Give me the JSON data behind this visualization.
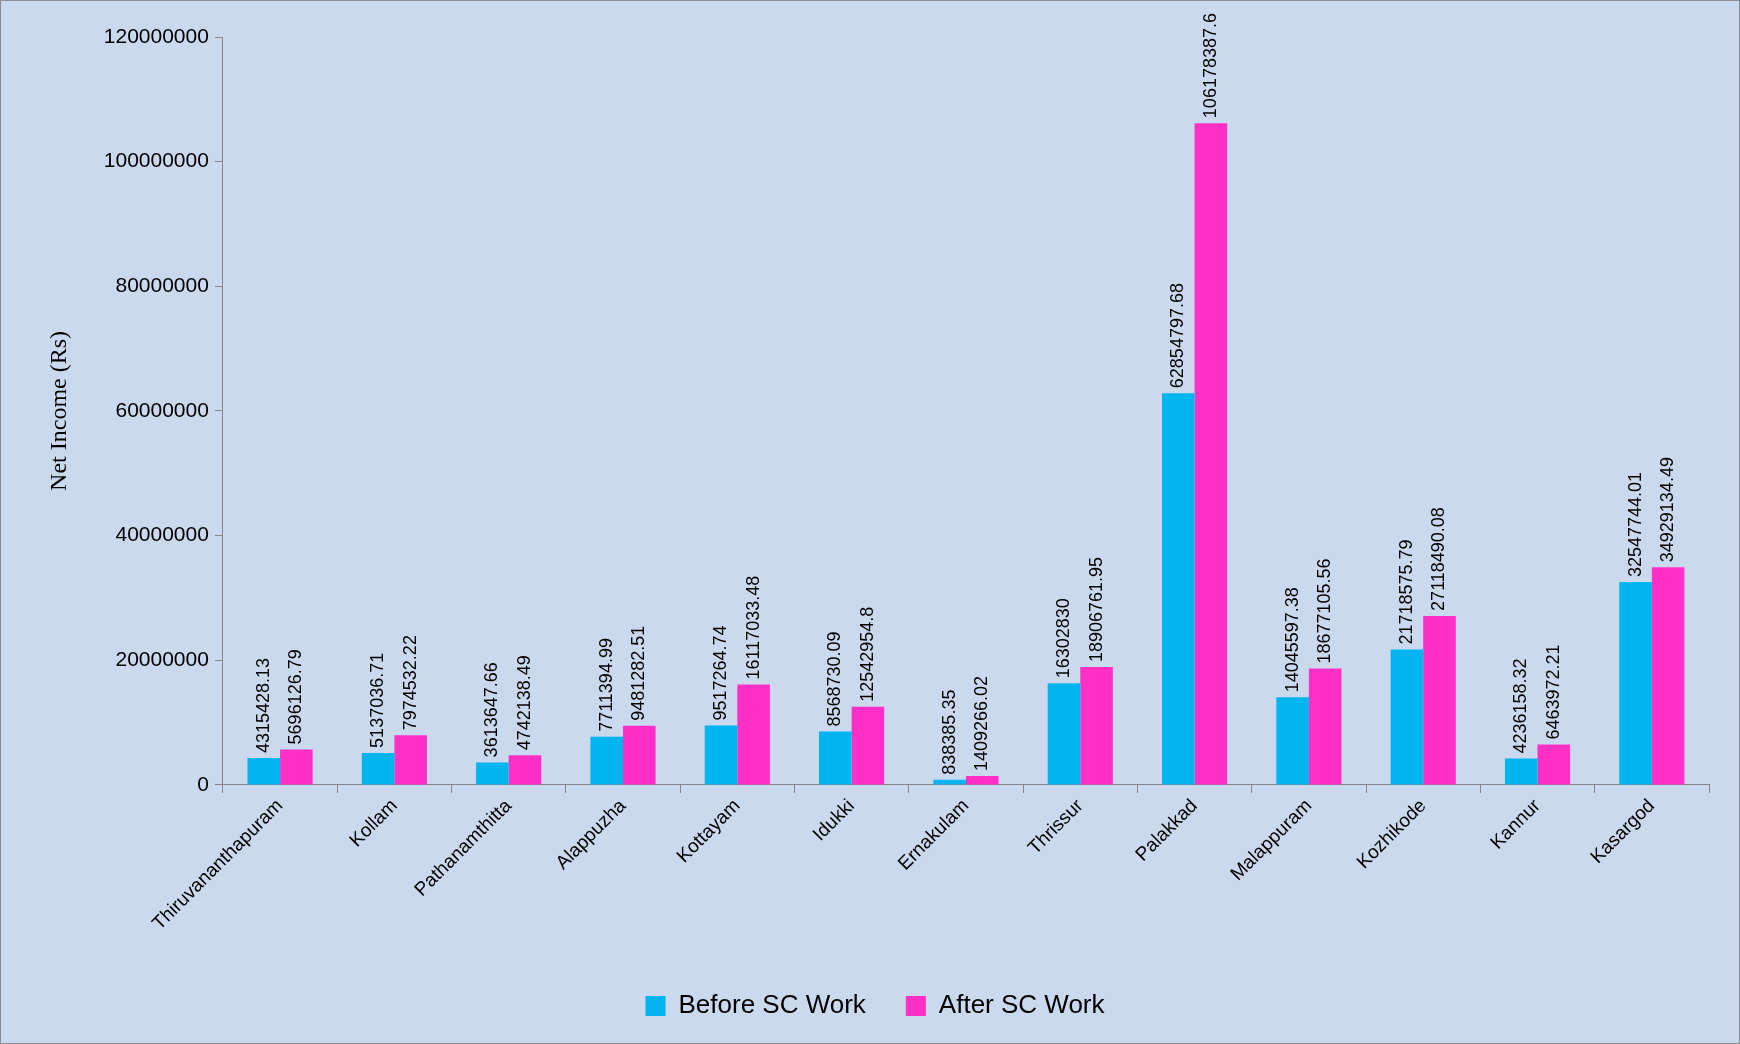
{
  "chart_data": {
    "type": "bar",
    "ylabel": "Net Income (Rs)",
    "categories": [
      "Thiruvananthapuram",
      "Kollam",
      "Pathanamthitta",
      "Alappuzha",
      "Kottayam",
      "Idukki",
      "Ernakulam",
      "Thrissur",
      "Palakkad",
      "Malappuram",
      "Kozhikode",
      "Kannur",
      "Kasargod"
    ],
    "series": [
      {
        "name": "Before SC Work",
        "color": "#00b4ef",
        "values": [
          4315428.13,
          5137036.71,
          3613647.66,
          7711394.99,
          9517264.74,
          8568730.09,
          838385.35,
          16302830,
          62854797.68,
          14045597.38,
          21718575.79,
          4236158.32,
          32547744.01
        ]
      },
      {
        "name": "After SC Work",
        "color": "#ff2fc8",
        "values": [
          5696126.79,
          7974532.22,
          4742138.49,
          9481282.51,
          16117033.48,
          12542954.8,
          1409266.02,
          18906761.95,
          106178387.6,
          18677105.56,
          27118490.08,
          6463972.21,
          34929134.49
        ]
      }
    ],
    "ylim": [
      0,
      120000000
    ],
    "yticks": [
      0,
      20000000,
      40000000,
      60000000,
      80000000,
      100000000,
      120000000
    ],
    "legend": "bottom",
    "data_labels": true
  }
}
